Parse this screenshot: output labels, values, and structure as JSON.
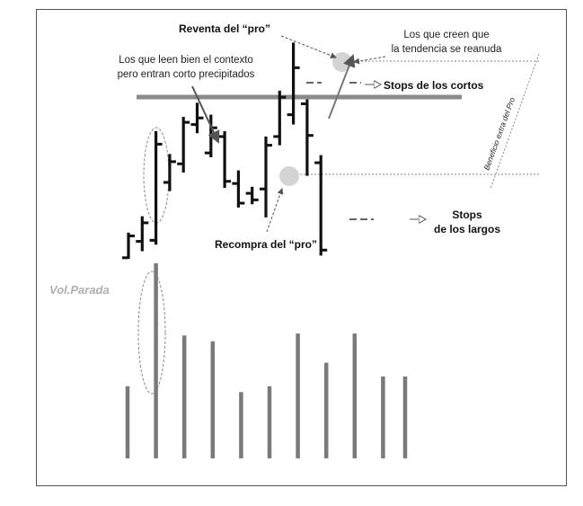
{
  "chart_data": {
    "type": "bar",
    "price_bars": [
      {
        "high": 12.0,
        "low": 0.0,
        "open": 0.5,
        "close": 10.5
      },
      {
        "high": 19.5,
        "low": 3.5,
        "open": 8.0,
        "close": 16.5
      },
      {
        "high": 58.5,
        "low": 6.5,
        "open": 8.5,
        "close": 52.5
      },
      {
        "high": 48.0,
        "low": 31.0,
        "open": 35.0,
        "close": 44.5
      },
      {
        "high": 65.0,
        "low": 39.5,
        "open": 43.5,
        "close": 62.5
      },
      {
        "high": 71.5,
        "low": 57.5,
        "open": 61.5,
        "close": 64.5
      },
      {
        "high": 66.0,
        "low": 46.5,
        "open": 48.5,
        "close": 60.0
      },
      {
        "high": 58.5,
        "low": 32.5,
        "open": 56.0,
        "close": 35.5
      },
      {
        "high": 40.5,
        "low": 23.5,
        "open": 34.5,
        "close": 25.5
      },
      {
        "high": 33.0,
        "low": 25.0,
        "open": 30.0,
        "close": 27.0
      },
      {
        "high": 56.0,
        "low": 19.0,
        "open": 32.0,
        "close": 52.0
      },
      {
        "high": 77.0,
        "low": 52.0,
        "open": 56.0,
        "close": 74.0
      },
      {
        "high": 99.0,
        "low": 61.5,
        "open": 66.0,
        "close": 87.5
      },
      {
        "high": 73.0,
        "low": 38.0,
        "open": 71.0,
        "close": 56.5
      },
      {
        "high": 47.5,
        "low": 1.5,
        "open": 44.0,
        "close": 4.0
      }
    ],
    "volume": [
      37,
      100,
      63,
      60,
      34,
      37,
      64,
      49,
      64,
      42,
      42
    ],
    "annotations": {
      "reventa": "Reventa del “pro”",
      "recompra": "Recompra del “pro”",
      "contexto_l1": "Los que leen bien el contexto",
      "contexto_l2": "pero entran corto precipitados",
      "creen_l1": "Los que creen que",
      "creen_l2": "la tendencia se reanuda",
      "stops_cortos": "Stops de los cortos",
      "stops_largos_l1": "Stops",
      "stops_largos_l2": "de los largos",
      "beneficio": "Beneficio extra del Pro",
      "vol_parada": "Vol.Parada"
    }
  }
}
